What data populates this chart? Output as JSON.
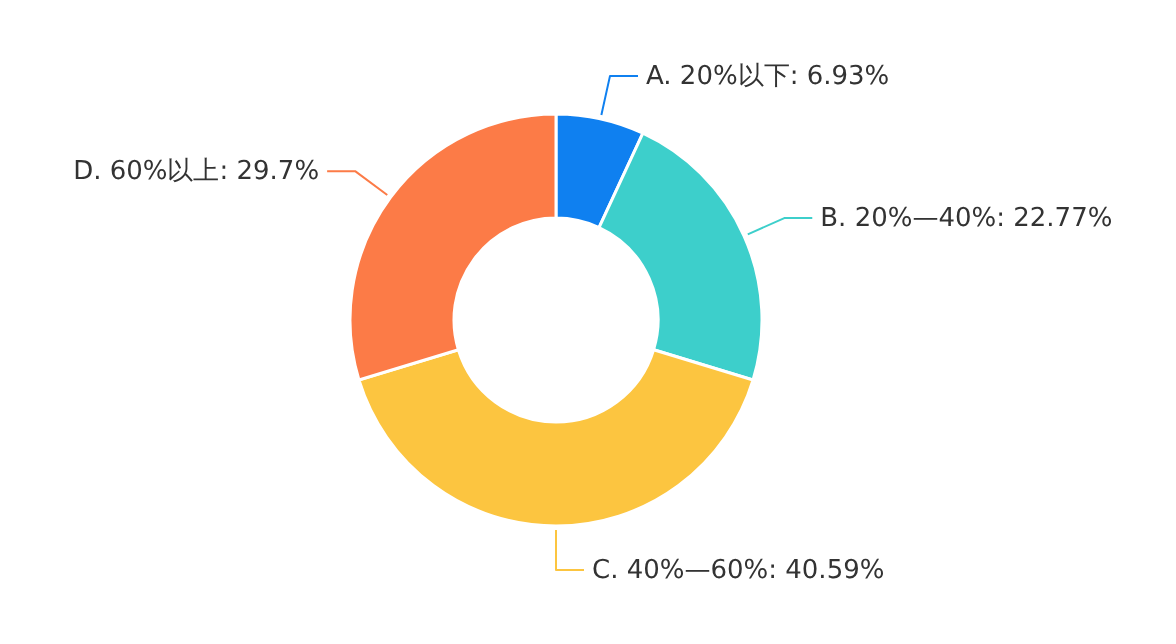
{
  "chart_data": {
    "type": "donut",
    "categories": [
      "A. 20%以下",
      "B. 20%—40%",
      "C. 40%—60%",
      "D. 60%以上"
    ],
    "values": [
      6.93,
      22.77,
      40.59,
      29.7
    ],
    "value_labels": [
      "6.93%",
      "22.77%",
      "40.59%",
      "29.7%"
    ],
    "colors": [
      "#0f80f0",
      "#3dcfcb",
      "#fcc540",
      "#fc7b47"
    ]
  }
}
